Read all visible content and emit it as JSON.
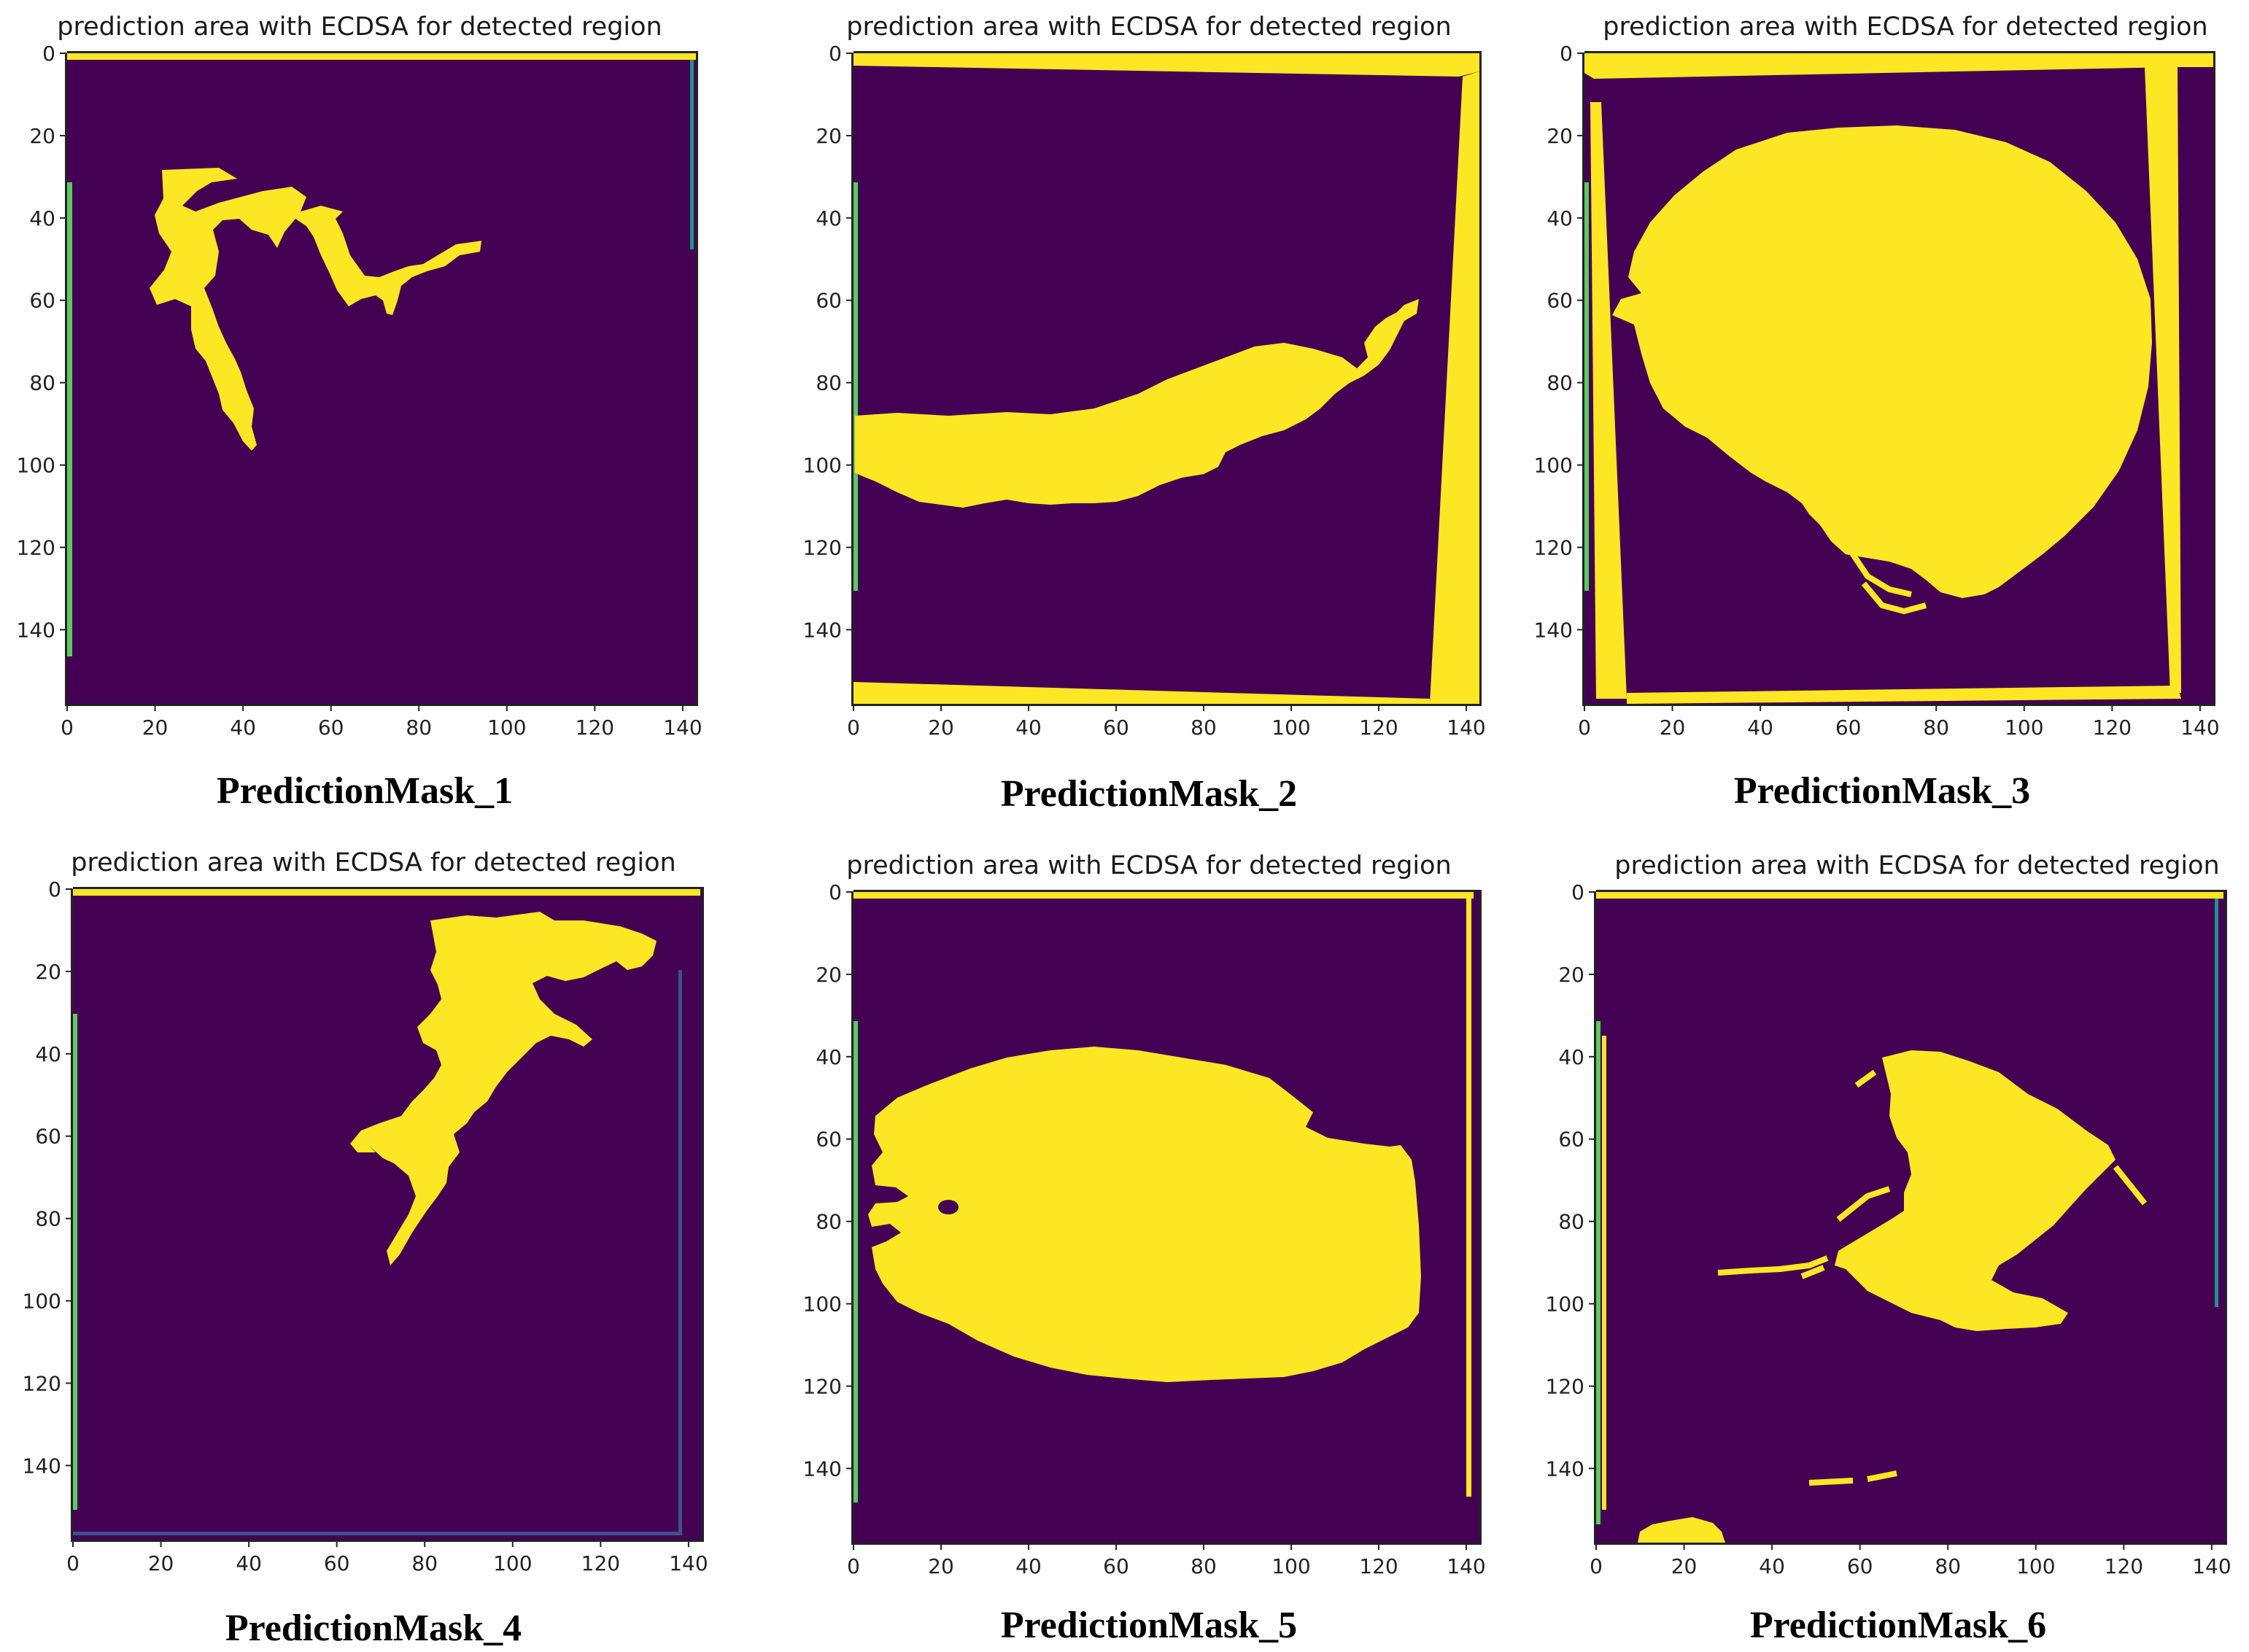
{
  "colors": {
    "background": "#440154",
    "region": "#fde725",
    "edge_teal": "#21918c",
    "edge_green": "#5ec962",
    "edge_blue": "#3b528b"
  },
  "chart_data": [
    {
      "type": "heatmap",
      "title": "prediction area with ECDSA for detected region",
      "caption": "PredictionMask_1",
      "colormap": "viridis",
      "values": [
        0,
        1
      ],
      "xlim": [
        0,
        143
      ],
      "ylim": [
        158,
        0
      ],
      "xticks": [
        "0",
        "20",
        "40",
        "60",
        "80",
        "100",
        "120",
        "140"
      ],
      "yticks": [
        "0",
        "20",
        "40",
        "60",
        "80",
        "100",
        "120",
        "140"
      ],
      "detected_region": "thin winding river-like branch, x≈18–95, y≈28–96"
    },
    {
      "type": "heatmap",
      "title": "prediction area with ECDSA for detected region",
      "caption": "PredictionMask_2",
      "colormap": "viridis",
      "values": [
        0,
        1
      ],
      "xlim": [
        0,
        143
      ],
      "ylim": [
        158,
        0
      ],
      "xticks": [
        "0",
        "20",
        "40",
        "60",
        "80",
        "100",
        "120",
        "140"
      ],
      "yticks": [
        "0",
        "20",
        "40",
        "60",
        "80",
        "100",
        "120",
        "140"
      ],
      "detected_region": "elongated lake band, x≈0–130, y≈60–112"
    },
    {
      "type": "heatmap",
      "title": "prediction area with ECDSA for detected region",
      "caption": "PredictionMask_3",
      "colormap": "viridis",
      "values": [
        0,
        1
      ],
      "xlim": [
        0,
        143
      ],
      "ylim": [
        158,
        0
      ],
      "xticks": [
        "0",
        "20",
        "40",
        "60",
        "80",
        "100",
        "120",
        "140"
      ],
      "yticks": [
        "0",
        "20",
        "40",
        "60",
        "80",
        "100",
        "120",
        "140"
      ],
      "detected_region": "large round lake, x≈6–130, y≈18–133"
    },
    {
      "type": "heatmap",
      "title": "prediction area with ECDSA for detected region",
      "caption": "PredictionMask_4",
      "colormap": "viridis",
      "values": [
        0,
        1
      ],
      "xlim": [
        0,
        143
      ],
      "ylim": [
        158,
        0
      ],
      "xticks": [
        "0",
        "20",
        "40",
        "60",
        "80",
        "100",
        "120",
        "140"
      ],
      "yticks": [
        "0",
        "20",
        "40",
        "60",
        "80",
        "100",
        "120",
        "140"
      ],
      "detected_region": "branching region with dendritic tail, x≈63–132, y≈5–93"
    },
    {
      "type": "heatmap",
      "title": "prediction area with ECDSA for detected region",
      "caption": "PredictionMask_5",
      "colormap": "viridis",
      "values": [
        0,
        1
      ],
      "xlim": [
        0,
        143
      ],
      "ylim": [
        158,
        0
      ],
      "xticks": [
        "0",
        "20",
        "40",
        "60",
        "80",
        "100",
        "120",
        "140"
      ],
      "yticks": [
        "0",
        "20",
        "40",
        "60",
        "80",
        "100",
        "120",
        "140"
      ],
      "detected_region": "large oval lake, x≈4–130, y≈38–117"
    },
    {
      "type": "heatmap",
      "title": "prediction area with ECDSA for detected region",
      "caption": "PredictionMask_6",
      "colormap": "viridis",
      "values": [
        0,
        1
      ],
      "xlim": [
        0,
        143
      ],
      "ylim": [
        158,
        0
      ],
      "xticks": [
        "0",
        "20",
        "40",
        "60",
        "80",
        "100",
        "120",
        "140"
      ],
      "yticks": [
        "0",
        "20",
        "40",
        "60",
        "80",
        "100",
        "120",
        "140"
      ],
      "detected_region": "irregular central region with fragments, x≈28–122, y≈35–112; small blob near x≈15–28, y≈152–158"
    }
  ]
}
